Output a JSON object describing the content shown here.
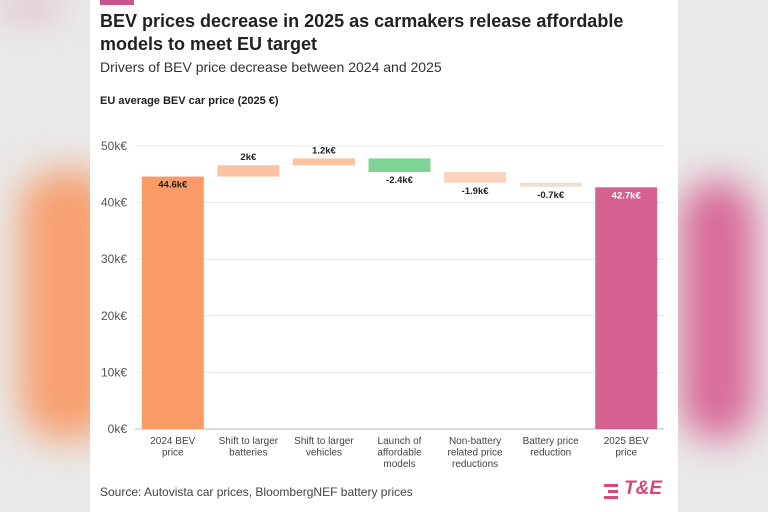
{
  "header": {
    "title": "BEV prices decrease in 2025 as carmakers release affordable models to meet EU target",
    "subtitle": "Drivers of BEV price decrease between 2024 and 2025",
    "axis_title": "EU average BEV car price (2025 €)"
  },
  "footer": {
    "source": "Source: Autovista car prices, BloombergNEF battery prices",
    "logo": "T&E"
  },
  "colors": {
    "start": "#f99a67",
    "increase": "#fbc1a3",
    "affordable": "#7fd394",
    "decrease": "#fcd4bd",
    "battery": "#f2ddd2",
    "end": "#d4618f",
    "brand": "#d8487a"
  },
  "chart_data": {
    "type": "bar",
    "subtype": "waterfall",
    "title": "BEV prices decrease in 2025 as carmakers release affordable models to meet EU target",
    "ylabel": "EU average BEV car price (2025 €)",
    "ylim": [
      0,
      50000
    ],
    "yticks": [
      0,
      10000,
      20000,
      30000,
      40000,
      50000
    ],
    "ytick_labels": [
      "0k€",
      "10k€",
      "20k€",
      "30k€",
      "40k€",
      "50k€"
    ],
    "grid": true,
    "categories": [
      [
        "2024 BEV",
        "price"
      ],
      [
        "Shift to larger",
        "batteries"
      ],
      [
        "Shift to larger",
        "vehicles"
      ],
      [
        "Launch of",
        "affordable",
        "models"
      ],
      [
        "Non-battery",
        "related price",
        "reductions"
      ],
      [
        "Battery price",
        "reduction"
      ],
      [
        "2025 BEV",
        "price"
      ]
    ],
    "steps": [
      {
        "kind": "total",
        "value": 44600,
        "label": "44.6k€",
        "color": "start"
      },
      {
        "kind": "delta",
        "value": 2000,
        "label": "2k€",
        "color": "increase"
      },
      {
        "kind": "delta",
        "value": 1200,
        "label": "1.2k€",
        "color": "increase"
      },
      {
        "kind": "delta",
        "value": -2400,
        "label": "-2.4k€",
        "color": "affordable"
      },
      {
        "kind": "delta",
        "value": -1900,
        "label": "-1.9k€",
        "color": "decrease"
      },
      {
        "kind": "delta",
        "value": -700,
        "label": "-0.7k€",
        "color": "battery"
      },
      {
        "kind": "total",
        "value": 42700,
        "label": "42.7k€",
        "color": "end"
      }
    ]
  }
}
